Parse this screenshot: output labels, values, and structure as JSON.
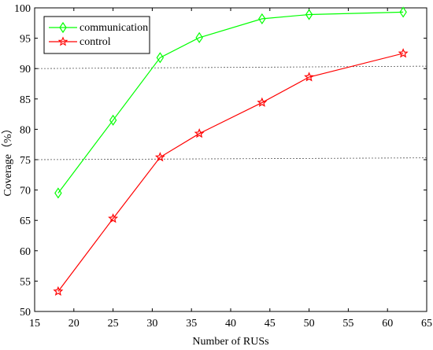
{
  "chart_data": {
    "type": "line",
    "title": "",
    "xlabel": "Number of RUSs",
    "ylabel": "Coverage（%）",
    "xlim": [
      15,
      65
    ],
    "ylim": [
      50,
      100
    ],
    "xticks": [
      "15",
      "20",
      "25",
      "30",
      "35",
      "40",
      "45",
      "50",
      "55",
      "60",
      "65"
    ],
    "yticks": [
      "50",
      "55",
      "60",
      "65",
      "70",
      "75",
      "80",
      "85",
      "90",
      "95",
      "100"
    ],
    "grid": false,
    "legend_position": "top-left",
    "reference_lines": [
      {
        "y_start": 75.0,
        "y_end": 75.3,
        "style": "dashed"
      },
      {
        "y_start": 90.0,
        "y_end": 90.4,
        "style": "dashed"
      }
    ],
    "series": [
      {
        "name": "communication",
        "color": "#00ff00",
        "marker": "diamond",
        "x": [
          18,
          25,
          31,
          36,
          44,
          50,
          62
        ],
        "y": [
          69.5,
          81.5,
          91.8,
          95.1,
          98.2,
          98.9,
          99.3
        ]
      },
      {
        "name": "control",
        "color": "#ff0000",
        "marker": "star",
        "x": [
          18,
          25,
          31,
          36,
          44,
          50,
          62
        ],
        "y": [
          53.3,
          65.3,
          75.4,
          79.3,
          84.4,
          88.6,
          92.5
        ]
      }
    ]
  }
}
